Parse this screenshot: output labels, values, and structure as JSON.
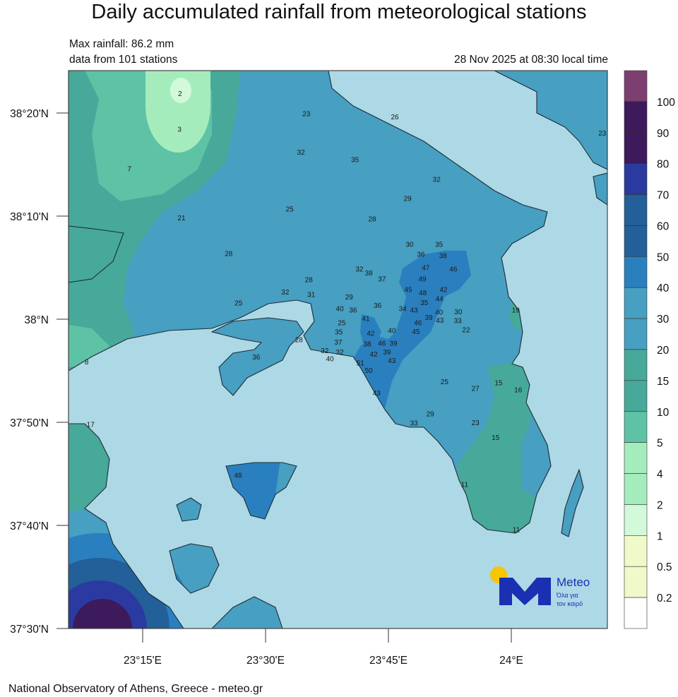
{
  "header": {
    "title": "Daily accumulated rainfall from meteorological stations",
    "max_rainfall": "Max rainfall: 86.2 mm",
    "stations_count": "data from 101 stations",
    "timestamp": "28 Nov 2025 at 08:30 local time"
  },
  "footer": {
    "credit": "National Observatory of Athens, Greece - meteo.gr"
  },
  "logo": {
    "name": "Meteo",
    "tagline_1": "Όλα για",
    "tagline_2": "τον καιρό",
    "sun_color": "#f7c600",
    "brand_color": "#1b2fb3"
  },
  "map": {
    "extent": {
      "lon": [
        23.099,
        24.195
      ],
      "lat": [
        37.5,
        38.402
      ]
    },
    "sea_color": "#add8e6",
    "lon_ticks": [
      {
        "value": 23.25,
        "label": "23°15'E"
      },
      {
        "value": 23.5,
        "label": "23°30'E"
      },
      {
        "value": 23.75,
        "label": "23°45'E"
      },
      {
        "value": 24.0,
        "label": "24°E"
      }
    ],
    "lat_ticks": [
      {
        "value": 38.3333,
        "label": "38°20'N"
      },
      {
        "value": 38.1667,
        "label": "38°10'N"
      },
      {
        "value": 38.0,
        "label": "38°N"
      },
      {
        "value": 37.8333,
        "label": "37°50'N"
      },
      {
        "value": 37.6667,
        "label": "37°40'N"
      },
      {
        "value": 37.5,
        "label": "37°30'N"
      }
    ],
    "stations": [
      {
        "lon": 23.326,
        "lat": 38.364,
        "v": "2"
      },
      {
        "lon": 23.325,
        "lat": 38.306,
        "v": "3"
      },
      {
        "lon": 23.223,
        "lat": 38.242,
        "v": "7"
      },
      {
        "lon": 23.329,
        "lat": 38.163,
        "v": "21"
      },
      {
        "lon": 23.425,
        "lat": 38.105,
        "v": "28"
      },
      {
        "lon": 23.549,
        "lat": 38.177,
        "v": "25"
      },
      {
        "lon": 23.583,
        "lat": 38.331,
        "v": "23"
      },
      {
        "lon": 23.572,
        "lat": 38.269,
        "v": "32"
      },
      {
        "lon": 23.682,
        "lat": 38.257,
        "v": "35"
      },
      {
        "lon": 23.763,
        "lat": 38.326,
        "v": "26"
      },
      {
        "lon": 23.848,
        "lat": 38.225,
        "v": "32"
      },
      {
        "lon": 23.789,
        "lat": 38.194,
        "v": "29"
      },
      {
        "lon": 23.717,
        "lat": 38.161,
        "v": "28"
      },
      {
        "lon": 23.793,
        "lat": 38.12,
        "v": "30"
      },
      {
        "lon": 23.853,
        "lat": 38.12,
        "v": "35"
      },
      {
        "lon": 23.861,
        "lat": 38.113,
        "v": "38"
      },
      {
        "lon": 23.816,
        "lat": 38.104,
        "v": "36"
      },
      {
        "lon": 23.826,
        "lat": 38.094,
        "v": "47"
      },
      {
        "lon": 23.882,
        "lat": 38.08,
        "v": "46"
      },
      {
        "lon": 23.691,
        "lat": 38.08,
        "v": "32"
      },
      {
        "lon": 23.71,
        "lat": 38.074,
        "v": "38"
      },
      {
        "lon": 23.737,
        "lat": 38.064,
        "v": "37"
      },
      {
        "lon": 23.588,
        "lat": 38.063,
        "v": "28"
      },
      {
        "lon": 23.54,
        "lat": 38.043,
        "v": "32"
      },
      {
        "lon": 23.593,
        "lat": 38.039,
        "v": "31"
      },
      {
        "lon": 23.445,
        "lat": 38.025,
        "v": "25"
      },
      {
        "lon": 23.819,
        "lat": 38.064,
        "v": "49"
      },
      {
        "lon": 23.82,
        "lat": 38.053,
        "v": "48"
      },
      {
        "lon": 23.809,
        "lat": 38.047,
        "v": "45"
      },
      {
        "lon": 23.862,
        "lat": 38.047,
        "v": "42"
      },
      {
        "lon": 23.823,
        "lat": 38.037,
        "v": "35"
      },
      {
        "lon": 23.835,
        "lat": 38.032,
        "v": "44"
      },
      {
        "lon": 23.853,
        "lat": 38.022,
        "v": "40"
      },
      {
        "lon": 23.67,
        "lat": 38.035,
        "v": "29"
      },
      {
        "lon": 23.678,
        "lat": 38.025,
        "v": "36"
      },
      {
        "lon": 23.651,
        "lat": 38.016,
        "v": "40"
      },
      {
        "lon": 23.655,
        "lat": 38.005,
        "v": "25"
      },
      {
        "lon": 23.649,
        "lat": 37.99,
        "v": "35"
      },
      {
        "lon": 23.728,
        "lat": 38.021,
        "v": "36"
      },
      {
        "lon": 23.779,
        "lat": 38.016,
        "v": "34"
      },
      {
        "lon": 23.802,
        "lat": 38.014,
        "v": "43"
      },
      {
        "lon": 23.81,
        "lat": 38.005,
        "v": "46"
      },
      {
        "lon": 23.832,
        "lat": 38.002,
        "v": "39"
      },
      {
        "lon": 23.836,
        "lat": 38.009,
        "v": "43"
      },
      {
        "lon": 23.704,
        "lat": 38.0,
        "v": "41"
      },
      {
        "lon": 23.892,
        "lat": 38.011,
        "v": "30"
      },
      {
        "lon": 23.891,
        "lat": 37.997,
        "v": "33"
      },
      {
        "lon": 23.908,
        "lat": 37.982,
        "v": "22"
      },
      {
        "lon": 24.009,
        "lat": 38.014,
        "v": "19"
      },
      {
        "lon": 23.714,
        "lat": 37.976,
        "v": "42"
      },
      {
        "lon": 23.757,
        "lat": 37.981,
        "v": "40"
      },
      {
        "lon": 23.806,
        "lat": 37.979,
        "v": "45"
      },
      {
        "lon": 23.76,
        "lat": 37.96,
        "v": "39"
      },
      {
        "lon": 23.648,
        "lat": 37.962,
        "v": "37"
      },
      {
        "lon": 23.568,
        "lat": 37.966,
        "v": "28"
      },
      {
        "lon": 23.707,
        "lat": 37.959,
        "v": "38"
      },
      {
        "lon": 23.72,
        "lat": 37.954,
        "v": "42"
      },
      {
        "lon": 23.718,
        "lat": 37.949,
        "v": "46"
      },
      {
        "lon": 23.747,
        "lat": 37.946,
        "v": "39"
      },
      {
        "lon": 23.651,
        "lat": 37.946,
        "v": "32"
      },
      {
        "lon": 23.481,
        "lat": 37.938,
        "v": "36"
      },
      {
        "lon": 23.631,
        "lat": 37.935,
        "v": "40"
      },
      {
        "lon": 23.639,
        "lat": 37.937,
        "v": "32"
      },
      {
        "lon": 23.757,
        "lat": 37.932,
        "v": "43"
      },
      {
        "lon": 23.693,
        "lat": 37.928,
        "v": "51"
      },
      {
        "lon": 23.71,
        "lat": 37.916,
        "v": "50"
      },
      {
        "lon": 23.864,
        "lat": 37.898,
        "v": "25"
      },
      {
        "lon": 23.927,
        "lat": 37.887,
        "v": "27"
      },
      {
        "lon": 23.974,
        "lat": 37.896,
        "v": "15"
      },
      {
        "lon": 24.014,
        "lat": 37.885,
        "v": "16"
      },
      {
        "lon": 23.726,
        "lat": 37.88,
        "v": "43"
      },
      {
        "lon": 23.835,
        "lat": 37.846,
        "v": "29"
      },
      {
        "lon": 23.802,
        "lat": 37.831,
        "v": "33"
      },
      {
        "lon": 23.927,
        "lat": 37.832,
        "v": "23"
      },
      {
        "lon": 23.968,
        "lat": 37.808,
        "v": "15"
      },
      {
        "lon": 23.136,
        "lat": 37.93,
        "v": "8"
      },
      {
        "lon": 23.144,
        "lat": 37.829,
        "v": "17"
      },
      {
        "lon": 23.444,
        "lat": 37.747,
        "v": "48"
      },
      {
        "lon": 23.905,
        "lat": 37.732,
        "v": "11"
      },
      {
        "lon": 24.01,
        "lat": 37.659,
        "v": "11"
      },
      {
        "lon": 24.185,
        "lat": 38.3,
        "v": "23"
      }
    ]
  },
  "legend": {
    "unit": "mm",
    "bins": [
      {
        "color": "#7d3f70"
      },
      {
        "color": "#3d1a5c",
        "label": "100"
      },
      {
        "color": "#3d1a5c",
        "label": "90"
      },
      {
        "color": "#2a3aa0",
        "label": "80"
      },
      {
        "color": "#235f99",
        "label": "70"
      },
      {
        "color": "#235f99",
        "label": "60"
      },
      {
        "color": "#2a80bf",
        "label": "50"
      },
      {
        "color": "#479fc1",
        "label": "40"
      },
      {
        "color": "#479fc1",
        "label": "30"
      },
      {
        "color": "#47a99a",
        "label": "20"
      },
      {
        "color": "#47a99a",
        "label": "15"
      },
      {
        "color": "#5ec2a5",
        "label": "10"
      },
      {
        "color": "#a5ecbd",
        "label": "5"
      },
      {
        "color": "#a5ecbd",
        "label": "4"
      },
      {
        "color": "#d1f9da",
        "label": "2"
      },
      {
        "color": "#eff9c9",
        "label": "1"
      },
      {
        "color": "#eff9c9",
        "label": "0.5"
      },
      {
        "color": "#ffffff",
        "label": "0.2"
      }
    ]
  }
}
